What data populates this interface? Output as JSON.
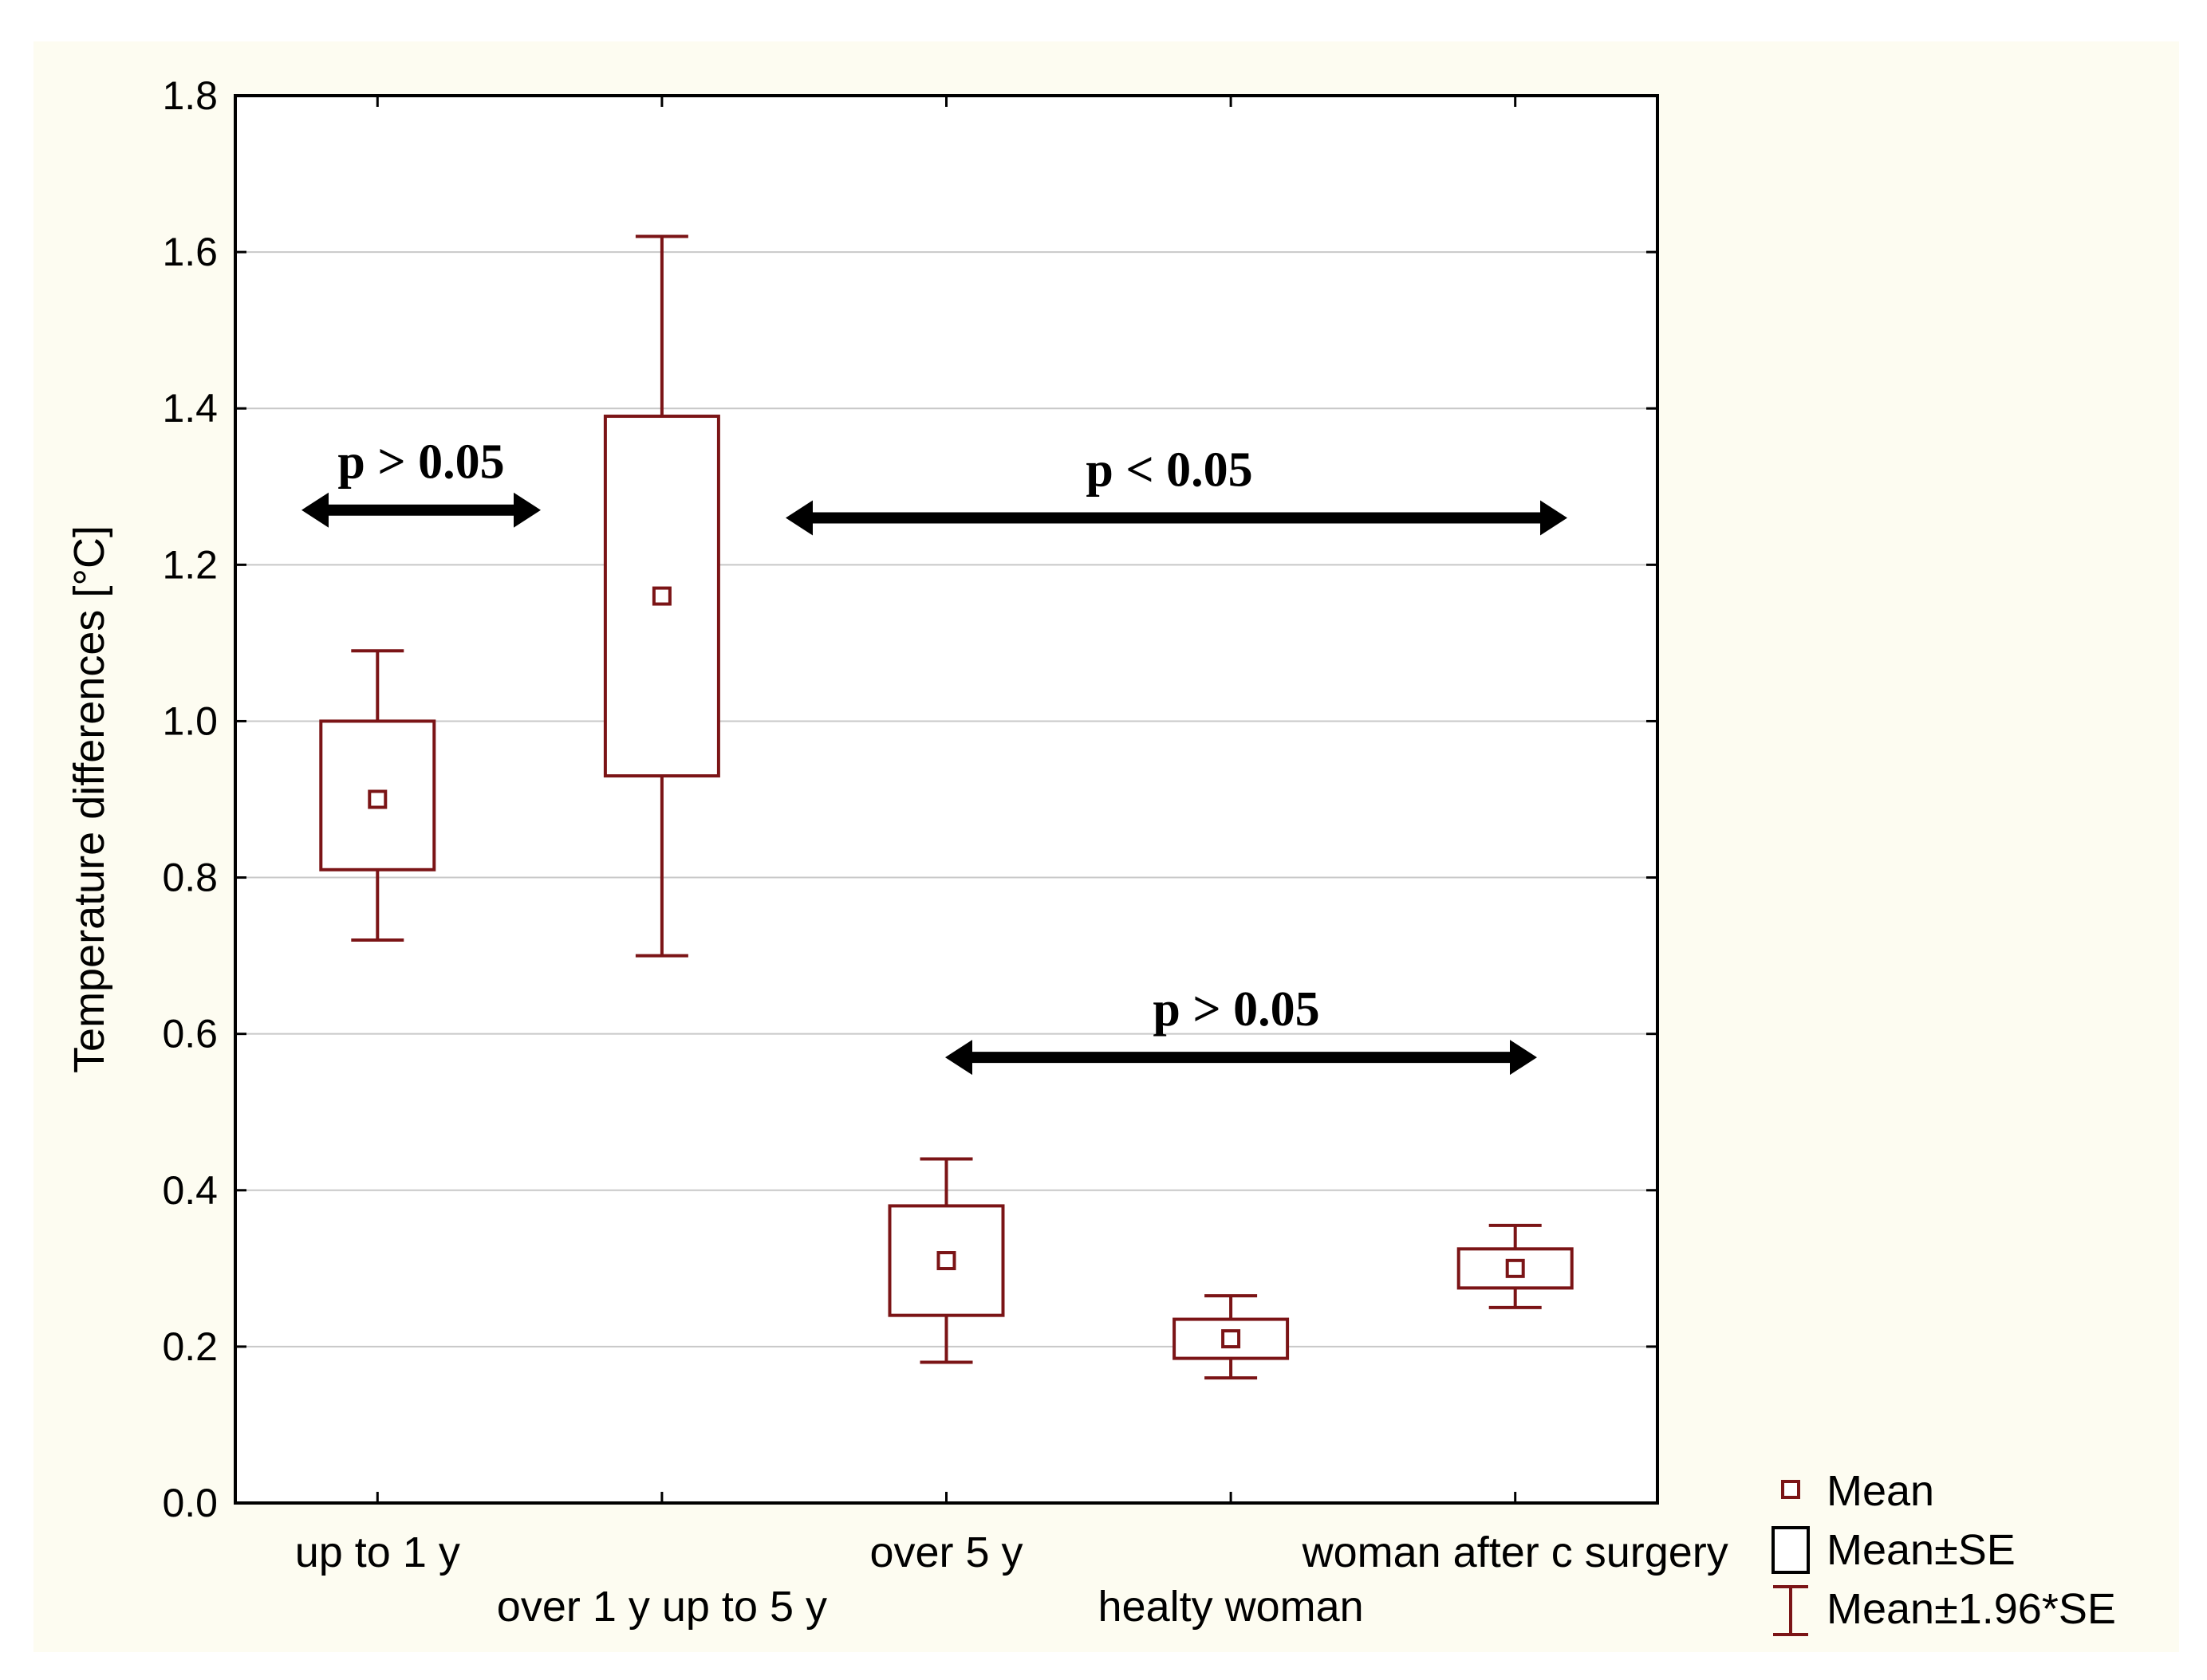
{
  "chart_data": {
    "type": "box",
    "title": "",
    "xlabel": "",
    "ylabel": "Temperature differences [°C]",
    "ylim": [
      0,
      1.8
    ],
    "yticks": [
      "0.0",
      "0.2",
      "0.4",
      "0.6",
      "0.8",
      "1.0",
      "1.2",
      "1.4",
      "1.6",
      "1.8"
    ],
    "grid": true,
    "legend_position": "bottom-right",
    "categories": [
      "up to 1 y",
      "over 1 y up to 5 y",
      "over 5 y",
      "healty woman",
      "woman after c surgery"
    ],
    "mean": [
      0.9,
      1.16,
      0.31,
      0.21,
      0.3
    ],
    "se_low": [
      0.81,
      0.93,
      0.24,
      0.185,
      0.275
    ],
    "se_high": [
      1.0,
      1.39,
      0.38,
      0.235,
      0.325
    ],
    "ci_low": [
      0.72,
      0.7,
      0.18,
      0.16,
      0.25
    ],
    "ci_high": [
      1.09,
      1.62,
      0.44,
      0.265,
      0.355
    ],
    "annotations": [
      {
        "text": "p > 0.05",
        "x_from": 0,
        "x_to": 1,
        "y": 1.27
      },
      {
        "text": "p < 0.05",
        "x_from": 1,
        "x_to": 4,
        "y": 1.26
      },
      {
        "text": "p > 0.05",
        "x_from": 2,
        "x_to": 4,
        "y": 0.57
      }
    ],
    "legend": [
      "Mean",
      "Mean±SE",
      "Mean±1.96*SE"
    ]
  },
  "colors": {
    "background": "#fdfcf1",
    "plot_background": "#ffffff",
    "series": "#7b1416",
    "grid": "#c8c8c8",
    "axis": "#000000"
  }
}
